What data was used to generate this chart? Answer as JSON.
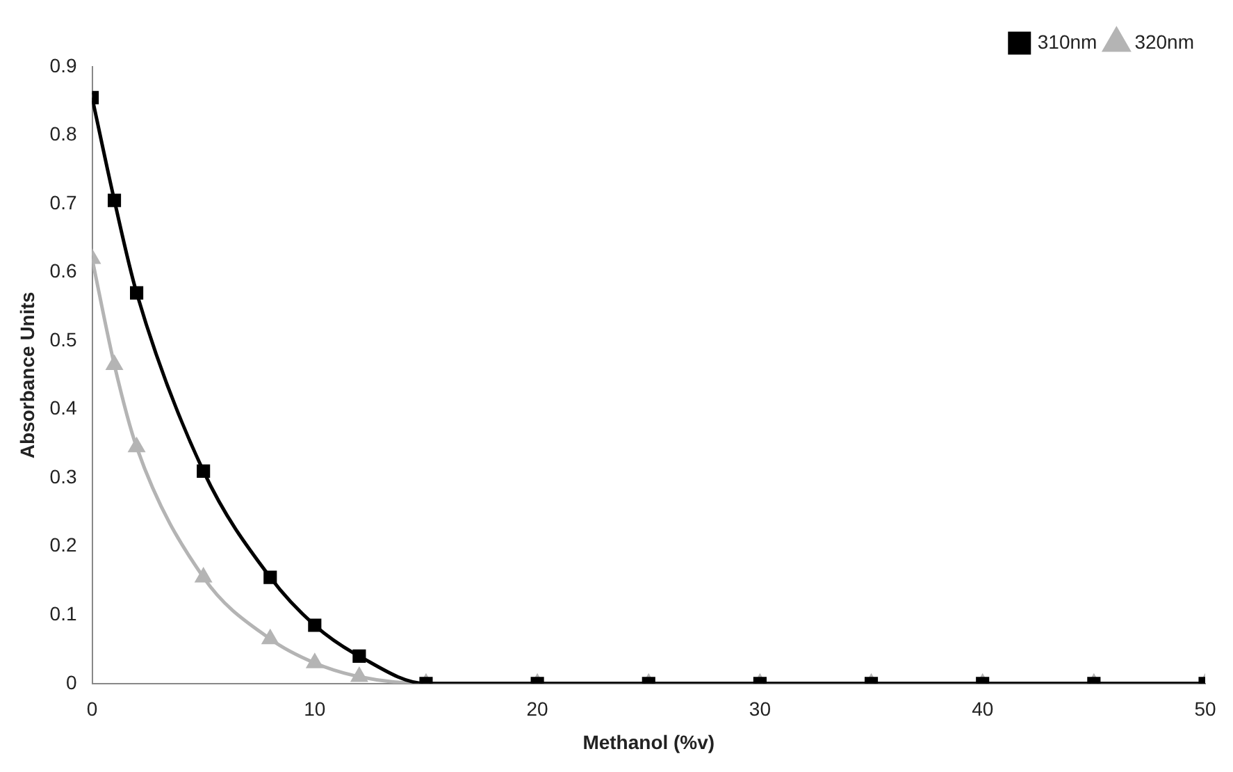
{
  "chart_data": {
    "type": "line",
    "xlabel": "Methanol (%v)",
    "ylabel": "Absorbance Units",
    "x": [
      0,
      1,
      2,
      5,
      8,
      10,
      12,
      15,
      20,
      25,
      30,
      35,
      40,
      45,
      50
    ],
    "series": [
      {
        "name": "310nm",
        "color": "#000000",
        "marker": "square",
        "values": [
          0.855,
          0.705,
          0.57,
          0.31,
          0.155,
          0.085,
          0.04,
          0,
          0,
          0,
          0,
          0,
          0,
          0,
          0
        ]
      },
      {
        "name": "320nm",
        "color": "#b4b4b4",
        "marker": "triangle",
        "values": [
          0.62,
          0.465,
          0.345,
          0.155,
          0.065,
          0.03,
          0.01,
          0,
          0,
          0,
          0,
          0,
          0,
          0,
          0
        ]
      }
    ],
    "xlim": [
      0,
      50
    ],
    "xticks": [
      0,
      10,
      20,
      30,
      40,
      50
    ],
    "ylim": [
      0,
      0.9
    ],
    "yticks": [
      0,
      0.1,
      0.2,
      0.3,
      0.4,
      0.5,
      0.6,
      0.7,
      0.8,
      0.9
    ],
    "grid": false,
    "legend": "top right",
    "line_style": "solid"
  }
}
